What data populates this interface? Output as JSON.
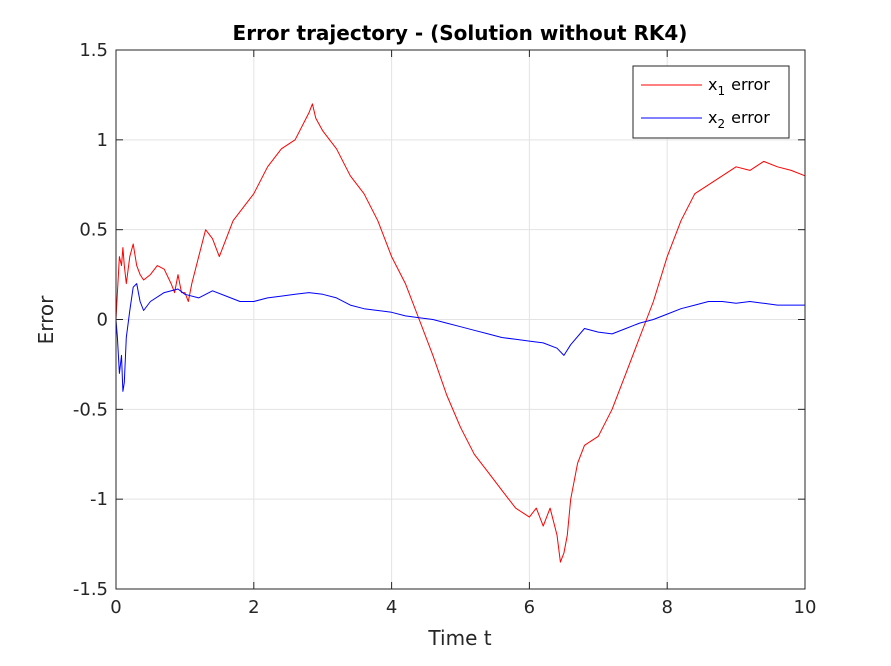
{
  "chart_data": {
    "type": "line",
    "title": "Error trajectory - (Solution without RK4)",
    "xlabel": "Time t",
    "ylabel": "Error",
    "xlim": [
      0,
      10
    ],
    "ylim": [
      -1.5,
      1.5
    ],
    "xticks": [
      0,
      2,
      4,
      6,
      8,
      10
    ],
    "xtick_labels": [
      "0",
      "2",
      "4",
      "6",
      "8",
      "10"
    ],
    "yticks": [
      -1.5,
      -1,
      -0.5,
      0,
      0.5,
      1,
      1.5
    ],
    "ytick_labels": [
      "-1.5",
      "-1",
      "-0.5",
      "0",
      "0.5",
      "1",
      "1.5"
    ],
    "grid": true,
    "legend_position": "top-right",
    "series": [
      {
        "name": "x_1 error",
        "legend_base": "x",
        "legend_sub": "1",
        "legend_suffix": "error",
        "color": "#ff0000",
        "x": [
          0,
          0.02,
          0.05,
          0.08,
          0.1,
          0.12,
          0.15,
          0.2,
          0.25,
          0.3,
          0.35,
          0.4,
          0.5,
          0.6,
          0.7,
          0.8,
          0.85,
          0.9,
          0.95,
          1.0,
          1.05,
          1.1,
          1.2,
          1.3,
          1.4,
          1.5,
          1.6,
          1.7,
          1.8,
          2.0,
          2.2,
          2.4,
          2.6,
          2.8,
          2.85,
          2.9,
          3.0,
          3.2,
          3.4,
          3.6,
          3.8,
          4.0,
          4.2,
          4.4,
          4.6,
          4.8,
          5.0,
          5.2,
          5.4,
          5.6,
          5.8,
          6.0,
          6.1,
          6.2,
          6.3,
          6.4,
          6.45,
          6.5,
          6.55,
          6.6,
          6.7,
          6.8,
          7.0,
          7.2,
          7.4,
          7.6,
          7.8,
          8.0,
          8.2,
          8.4,
          8.6,
          8.8,
          9.0,
          9.2,
          9.4,
          9.6,
          9.8,
          10.0
        ],
        "values": [
          0.0,
          0.15,
          0.35,
          0.3,
          0.4,
          0.3,
          0.2,
          0.35,
          0.42,
          0.3,
          0.25,
          0.22,
          0.25,
          0.3,
          0.28,
          0.2,
          0.15,
          0.25,
          0.15,
          0.15,
          0.1,
          0.2,
          0.35,
          0.5,
          0.45,
          0.35,
          0.45,
          0.55,
          0.6,
          0.7,
          0.85,
          0.95,
          1.0,
          1.15,
          1.2,
          1.12,
          1.05,
          0.95,
          0.8,
          0.7,
          0.55,
          0.35,
          0.2,
          0.0,
          -0.2,
          -0.42,
          -0.6,
          -0.75,
          -0.85,
          -0.95,
          -1.05,
          -1.1,
          -1.05,
          -1.15,
          -1.05,
          -1.2,
          -1.35,
          -1.3,
          -1.2,
          -1.0,
          -0.8,
          -0.7,
          -0.65,
          -0.5,
          -0.3,
          -0.1,
          0.1,
          0.35,
          0.55,
          0.7,
          0.75,
          0.8,
          0.85,
          0.83,
          0.88,
          0.85,
          0.83,
          0.8
        ]
      },
      {
        "name": "x_2 error",
        "legend_base": "x",
        "legend_sub": "2",
        "legend_suffix": "error",
        "color": "#0000ff",
        "x": [
          0,
          0.02,
          0.05,
          0.08,
          0.1,
          0.12,
          0.15,
          0.2,
          0.25,
          0.3,
          0.35,
          0.4,
          0.5,
          0.7,
          0.9,
          1.0,
          1.2,
          1.4,
          1.6,
          1.8,
          2.0,
          2.2,
          2.4,
          2.6,
          2.8,
          3.0,
          3.2,
          3.4,
          3.6,
          3.8,
          4.0,
          4.2,
          4.4,
          4.6,
          4.8,
          5.0,
          5.2,
          5.4,
          5.6,
          5.8,
          6.0,
          6.2,
          6.4,
          6.5,
          6.6,
          6.8,
          7.0,
          7.2,
          7.4,
          7.6,
          7.8,
          8.0,
          8.2,
          8.4,
          8.6,
          8.8,
          9.0,
          9.2,
          9.4,
          9.6,
          9.8,
          10.0
        ],
        "values": [
          0.0,
          -0.1,
          -0.3,
          -0.2,
          -0.4,
          -0.35,
          -0.1,
          0.05,
          0.18,
          0.2,
          0.1,
          0.05,
          0.1,
          0.15,
          0.17,
          0.14,
          0.12,
          0.16,
          0.13,
          0.1,
          0.1,
          0.12,
          0.13,
          0.14,
          0.15,
          0.14,
          0.12,
          0.08,
          0.06,
          0.05,
          0.04,
          0.02,
          0.01,
          0.0,
          -0.02,
          -0.04,
          -0.06,
          -0.08,
          -0.1,
          -0.11,
          -0.12,
          -0.13,
          -0.16,
          -0.2,
          -0.14,
          -0.05,
          -0.07,
          -0.08,
          -0.05,
          -0.02,
          0.0,
          0.03,
          0.06,
          0.08,
          0.1,
          0.1,
          0.09,
          0.1,
          0.09,
          0.08,
          0.08,
          0.08
        ]
      }
    ]
  }
}
